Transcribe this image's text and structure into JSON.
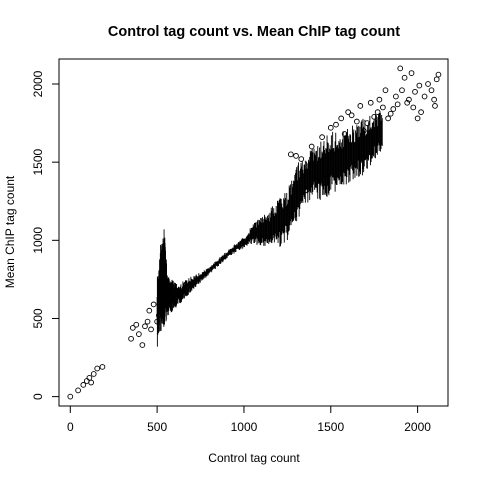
{
  "chart_data": {
    "type": "scatter",
    "title": "Control tag count vs. Mean ChIP tag count",
    "xlabel": "Control tag count",
    "ylabel": "Mean ChIP tag count",
    "xlim": [
      -65,
      2175
    ],
    "ylim": [
      -60,
      2160
    ],
    "x_ticks": [
      0,
      500,
      1000,
      1500,
      2000
    ],
    "y_ticks": [
      0,
      500,
      1000,
      1500,
      2000
    ],
    "grid": false,
    "legend": "none",
    "marker": "open-circle",
    "points": [
      [
        0,
        0
      ],
      [
        45,
        40
      ],
      [
        75,
        75
      ],
      [
        95,
        100
      ],
      [
        110,
        120
      ],
      [
        120,
        90
      ],
      [
        135,
        145
      ],
      [
        155,
        180
      ],
      [
        185,
        190
      ],
      [
        350,
        370
      ],
      [
        360,
        440
      ],
      [
        380,
        460
      ],
      [
        395,
        400
      ],
      [
        415,
        330
      ],
      [
        430,
        450
      ],
      [
        445,
        480
      ],
      [
        455,
        550
      ],
      [
        465,
        430
      ],
      [
        480,
        590
      ],
      [
        500,
        480
      ],
      [
        510,
        520
      ],
      [
        520,
        610
      ],
      [
        540,
        640
      ],
      [
        1270,
        1550
      ],
      [
        1300,
        1540
      ],
      [
        1330,
        1520
      ],
      [
        1360,
        1320
      ],
      [
        1390,
        1600
      ],
      [
        1420,
        1380
      ],
      [
        1450,
        1660
      ],
      [
        1470,
        1420
      ],
      [
        1500,
        1720
      ],
      [
        1530,
        1740
      ],
      [
        1560,
        1780
      ],
      [
        1580,
        1680
      ],
      [
        1600,
        1820
      ],
      [
        1620,
        1800
      ],
      [
        1650,
        1760
      ],
      [
        1670,
        1860
      ],
      [
        1690,
        1700
      ],
      [
        1710,
        1750
      ],
      [
        1730,
        1880
      ],
      [
        1750,
        1790
      ],
      [
        1770,
        1820
      ],
      [
        1780,
        1900
      ],
      [
        1800,
        1850
      ],
      [
        1815,
        1960
      ],
      [
        1830,
        1780
      ],
      [
        1845,
        1810
      ],
      [
        1860,
        1840
      ],
      [
        1875,
        1920
      ],
      [
        1885,
        1870
      ],
      [
        1900,
        2100
      ],
      [
        1910,
        1960
      ],
      [
        1925,
        2040
      ],
      [
        1940,
        1880
      ],
      [
        1950,
        1900
      ],
      [
        1965,
        2070
      ],
      [
        1975,
        1850
      ],
      [
        1985,
        1950
      ],
      [
        2000,
        1780
      ],
      [
        2010,
        1990
      ],
      [
        2020,
        1820
      ],
      [
        2040,
        1920
      ],
      [
        2060,
        2000
      ],
      [
        2080,
        1960
      ],
      [
        2095,
        1900
      ],
      [
        2100,
        1860
      ],
      [
        2110,
        2030
      ],
      [
        2120,
        2060
      ]
    ],
    "band": [
      [
        500,
        300,
        800
      ],
      [
        520,
        400,
        980
      ],
      [
        540,
        450,
        1100
      ],
      [
        560,
        500,
        780
      ],
      [
        580,
        520,
        760
      ],
      [
        600,
        560,
        730
      ],
      [
        640,
        600,
        730
      ],
      [
        680,
        650,
        760
      ],
      [
        720,
        700,
        780
      ],
      [
        760,
        740,
        800
      ],
      [
        800,
        780,
        830
      ],
      [
        850,
        830,
        880
      ],
      [
        900,
        880,
        930
      ],
      [
        950,
        920,
        980
      ],
      [
        1000,
        950,
        1020
      ],
      [
        1050,
        980,
        1100
      ],
      [
        1100,
        950,
        1150
      ],
      [
        1150,
        960,
        1200
      ],
      [
        1200,
        950,
        1270
      ],
      [
        1250,
        1000,
        1330
      ],
      [
        1300,
        1100,
        1500
      ],
      [
        1350,
        1200,
        1550
      ],
      [
        1400,
        1280,
        1600
      ],
      [
        1450,
        1240,
        1650
      ],
      [
        1500,
        1280,
        1700
      ],
      [
        1550,
        1300,
        1700
      ],
      [
        1600,
        1350,
        1720
      ],
      [
        1650,
        1400,
        1750
      ],
      [
        1700,
        1420,
        1790
      ],
      [
        1750,
        1500,
        1820
      ],
      [
        1800,
        1580,
        1830
      ]
    ]
  }
}
